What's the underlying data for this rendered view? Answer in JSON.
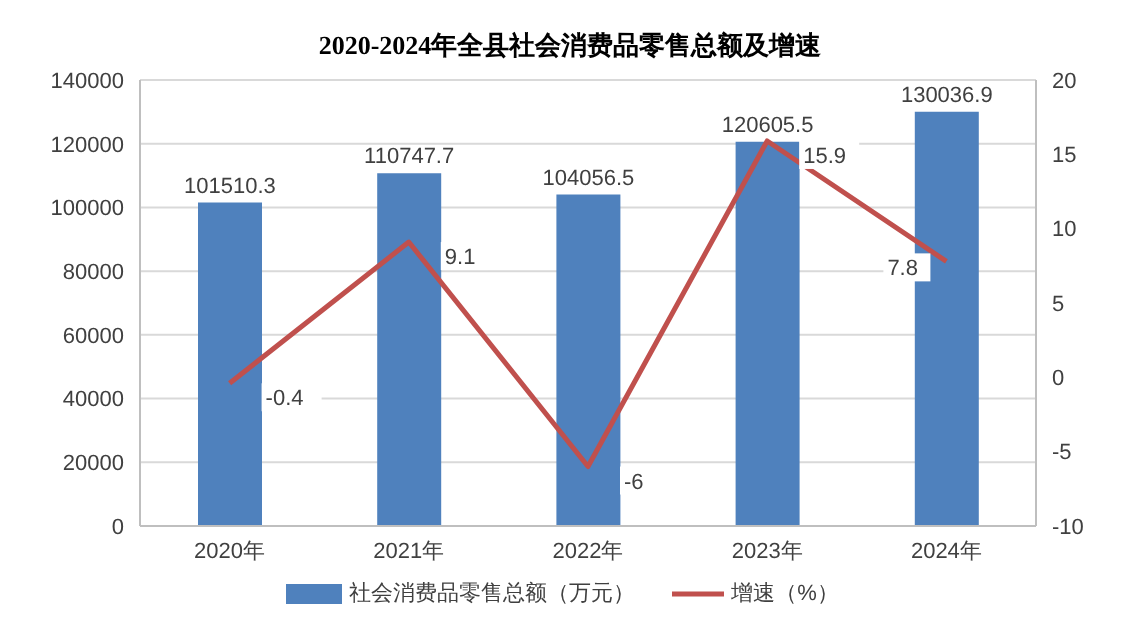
{
  "chart_data": {
    "type": "bar",
    "title": "2020-2024年全县社会消费品零售总额及增速",
    "categories": [
      "2020年",
      "2021年",
      "2022年",
      "2023年",
      "2024年"
    ],
    "series": [
      {
        "name": "社会消费品零售总额（万元）",
        "color": "#4f81bd",
        "values": [
          101510.3,
          110747.7,
          104056.5,
          120605.5,
          130036.9
        ]
      },
      {
        "name": "增速（%）",
        "type": "line",
        "axis": "y2",
        "color": "#c0504d",
        "values": [
          -0.4,
          9.1,
          -6,
          15.9,
          7.8
        ]
      }
    ],
    "ylim": [
      0,
      140000
    ],
    "yticks": [
      0,
      20000,
      40000,
      60000,
      80000,
      100000,
      120000,
      140000
    ],
    "y2lim": [
      -10,
      20
    ],
    "y2ticks": [
      -10,
      -5,
      0,
      5,
      10,
      15,
      20
    ],
    "data_labels": true,
    "grid": "y",
    "legend": "bottom",
    "marker": "none",
    "line_style": "solid"
  }
}
